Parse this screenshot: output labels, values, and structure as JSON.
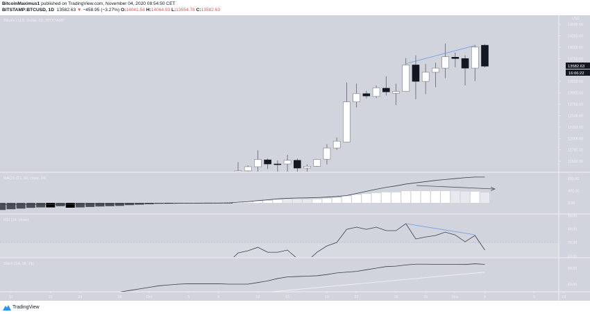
{
  "header": {
    "author": "BitcoinMaximus1",
    "published": "published on TradingView.com, November 04, 2020 08:54:50 CET",
    "symbol": "BITSTAMP:BTCUSD, 1D",
    "last": "13582.63",
    "change": "−458.95 (−3.27%)",
    "o_label": "O:",
    "o": "14041.58",
    "h_label": "H:",
    "h": "14064.93",
    "l_label": "L:",
    "l": "13554.78",
    "c_label": "C:",
    "c": "13582.63"
  },
  "chart_title": "Bitcoin / U.S. Dollar, 1D, BITSTAMP",
  "price_axis": {
    "currency": "USD",
    "ticks": [
      "14500.00",
      "14250.00",
      "14000.00",
      "13750.00",
      "13250.00",
      "13000.00",
      "12750.00",
      "12500.00",
      "12250.00",
      "12000.00",
      "11750.00",
      "11500.00"
    ],
    "last_price": "13582.63",
    "countdown": "16:06:22"
  },
  "colors": {
    "bg": "#d1d4dc",
    "up": "#ffffff",
    "down": "#131722",
    "trend": "#6f9be8",
    "axis_text": "#f0f1f4"
  },
  "candles": [
    [
      11270,
      11480,
      11230,
      11290
    ],
    [
      11290,
      11410,
      11210,
      11380
    ],
    [
      11380,
      11740,
      11210,
      11540
    ],
    [
      11530,
      11560,
      11330,
      11440
    ],
    [
      11440,
      11520,
      11250,
      11430
    ],
    [
      11440,
      11640,
      11240,
      11520
    ],
    [
      11520,
      11560,
      11240,
      11350
    ],
    [
      11350,
      11430,
      11240,
      11390
    ],
    [
      11390,
      11550,
      11380,
      11540
    ],
    [
      11545,
      11870,
      11430,
      11790
    ],
    [
      11790,
      12020,
      11750,
      11940
    ],
    [
      11920,
      13225,
      11910,
      12800
    ],
    [
      12800,
      13200,
      12680,
      12980
    ],
    [
      12980,
      13040,
      12880,
      12930
    ],
    [
      12920,
      13160,
      12880,
      13110
    ],
    [
      13100,
      13360,
      12940,
      13020
    ],
    [
      12990,
      13200,
      12730,
      13030
    ],
    [
      13030,
      13760,
      13020,
      13610
    ],
    [
      13610,
      13820,
      12860,
      13250
    ],
    [
      13250,
      13630,
      12970,
      13450
    ],
    [
      13450,
      13660,
      13120,
      13540
    ],
    [
      13540,
      14080,
      13320,
      13790
    ],
    [
      13780,
      13880,
      13560,
      13750
    ],
    [
      13750,
      13820,
      13160,
      13540
    ],
    [
      13540,
      14050,
      13260,
      14000
    ],
    [
      14041.58,
      14064.93,
      13554.78,
      13582.63
    ]
  ],
  "macd": {
    "label": "MACD (21, 50, close, 24)",
    "ticks": [
      "800.00",
      "400.00",
      "0.00"
    ],
    "hist_values": [
      -235,
      -210,
      -190,
      -165,
      -150,
      -150,
      -110,
      -160,
      -150,
      -135,
      -120,
      -110,
      -100,
      -75,
      -60,
      -45,
      -25,
      -15,
      -10,
      -5,
      -5,
      -3,
      -2,
      -1,
      15,
      30,
      53,
      75,
      105,
      120,
      120,
      120,
      120,
      143,
      166,
      219,
      264,
      294,
      325,
      347,
      347,
      385,
      385,
      385,
      385,
      385,
      385,
      370,
      370,
      340
    ],
    "hist_colors": [
      "d",
      "d",
      "d",
      "d",
      "d",
      "k",
      "d",
      "k",
      "d",
      "d",
      "d",
      "d",
      "d",
      "d",
      "d",
      "d",
      "d",
      "k",
      "d",
      "d",
      "d",
      "d",
      "d",
      "d",
      "w",
      "w",
      "w",
      "w",
      "w",
      "l",
      "l",
      "l",
      "w",
      "w",
      "w",
      "w",
      "w",
      "w",
      "w",
      "w",
      "w",
      "w",
      "w",
      "w",
      "w",
      "w",
      "l",
      "l",
      "w",
      "l"
    ],
    "line_values": [
      -60,
      -58,
      -55,
      -52,
      -50,
      -47,
      -45,
      -42,
      -40,
      -37,
      -35,
      -32,
      -30,
      -27,
      -25,
      -22,
      -20,
      -17,
      -15,
      -12,
      -10,
      -7,
      -5,
      -2,
      20,
      40,
      75,
      100,
      130,
      150,
      160,
      165,
      175,
      190,
      210,
      240,
      310,
      380,
      450,
      510,
      560,
      620,
      660,
      700,
      740,
      770,
      800,
      830,
      850,
      850
    ]
  },
  "rsi": {
    "label": "RSI (14, close)",
    "ticks": [
      "90.00",
      "80.00",
      "70.00",
      "60.00"
    ],
    "values": [
      55,
      62.2,
      63.8,
      66.4,
      62.7,
      62.7,
      64.3,
      58,
      56,
      62.7,
      67.4,
      70,
      79.8,
      81.4,
      79.8,
      81.4,
      78.8,
      78.8,
      84,
      72.6,
      74.1,
      75.2,
      77.7,
      75.6,
      70.5,
      75.2,
      64.3
    ]
  },
  "stoch": {
    "label": "Stoch (14, 28, 21)",
    "ticks": [
      "80.00",
      "60.00"
    ],
    "k_values": [
      50,
      52,
      54,
      56,
      58,
      59,
      60,
      60.5,
      60.5,
      60.5,
      60.5,
      60,
      60,
      60,
      62,
      64,
      67,
      69,
      69.5,
      70,
      70.5,
      72,
      74,
      75,
      76,
      78,
      80,
      82,
      82.5,
      84,
      85,
      85,
      84.8,
      84.8,
      84.8,
      84.6,
      85.5,
      84.8
    ],
    "d_start": 50,
    "d_end": 75
  },
  "time_axis": [
    "17",
    "21",
    "24",
    "28",
    "Oct",
    "5",
    "8",
    "12",
    "15",
    "19",
    "22",
    "26",
    "29",
    "Nov",
    "4",
    "9",
    "12"
  ],
  "footer": {
    "brand": "TradingView"
  }
}
